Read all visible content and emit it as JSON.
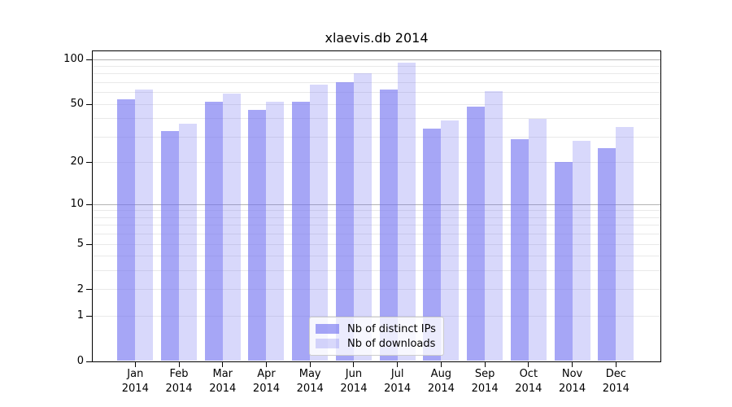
{
  "chart_data": {
    "type": "bar",
    "title": "xlaevis.db 2014",
    "categories": [
      "Jan",
      "Feb",
      "Mar",
      "Apr",
      "May",
      "Jun",
      "Jul",
      "Aug",
      "Sep",
      "Oct",
      "Nov",
      "Dec"
    ],
    "year_label": "2014",
    "series": [
      {
        "name": "Nb of distinct IPs",
        "color": "rgba(112,112,240,0.62)",
        "values": [
          54,
          33,
          52,
          46,
          52,
          70,
          63,
          34,
          48,
          29,
          20,
          25
        ]
      },
      {
        "name": "Nb of downloads",
        "color": "rgba(112,112,240,0.27)",
        "values": [
          63,
          37,
          59,
          52,
          68,
          81,
          95,
          39,
          61,
          40,
          28,
          35
        ]
      }
    ],
    "yscale": "log1p",
    "yticks": [
      0,
      1,
      2,
      5,
      10,
      20,
      50,
      100
    ],
    "ylim": [
      0,
      115
    ],
    "grid_minor": [
      1,
      2,
      3,
      4,
      5,
      6,
      7,
      8,
      9,
      20,
      30,
      40,
      50,
      60,
      70,
      80,
      90
    ],
    "grid_major": [
      10,
      100
    ],
    "grid": true,
    "legend_position": "lower center",
    "colors": {
      "grid_minor": "#e9e9e9",
      "grid_major": "#b3b3b3",
      "axis": "#000000",
      "background": "#ffffff"
    }
  }
}
